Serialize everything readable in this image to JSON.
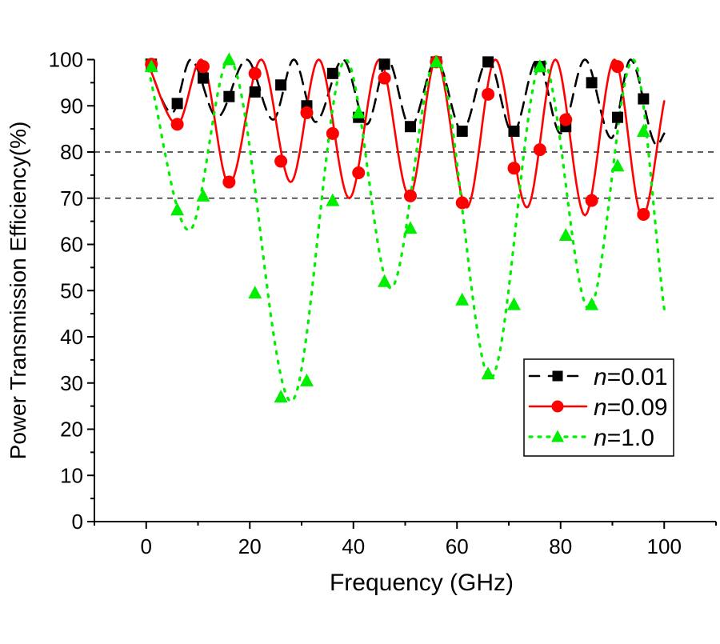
{
  "chart_data": {
    "type": "line",
    "title": "",
    "xlabel": "Frequency (GHz)",
    "ylabel": "Power Transmission Efficiency(%)",
    "xlim": [
      -10,
      110
    ],
    "ylim": [
      0,
      100
    ],
    "xticks": [
      0,
      20,
      40,
      60,
      80,
      100
    ],
    "yticks": [
      0,
      10,
      20,
      30,
      40,
      50,
      60,
      70,
      80,
      90,
      100
    ],
    "reference_lines": [
      80,
      70
    ],
    "grid": false,
    "legend_position": "bottom-right",
    "series": [
      {
        "name_prefix": "n",
        "name_suffix": "=0.01",
        "color": "#000000",
        "style": "dashed",
        "marker": "square",
        "markers": {
          "x": [
            1,
            6,
            11,
            16,
            21,
            26,
            31,
            36,
            41,
            46,
            51,
            56,
            61,
            66,
            71,
            76,
            81,
            86,
            91,
            96
          ],
          "y": [
            99,
            90.5,
            96,
            92,
            93,
            94.5,
            90,
            97,
            87.5,
            99,
            85.5,
            99.5,
            84.5,
            99.5,
            84.5,
            98.5,
            85.5,
            95,
            87.5,
            91.5
          ]
        },
        "curve": [
          [
            0,
            100
          ],
          [
            5,
            88.5
          ],
          [
            8.6,
            100
          ],
          [
            13.7,
            87.5
          ],
          [
            19.4,
            100
          ],
          [
            24.5,
            87
          ],
          [
            28.5,
            100
          ],
          [
            32.7,
            86.5
          ],
          [
            38,
            100
          ],
          [
            42.6,
            86
          ],
          [
            46.6,
            100
          ],
          [
            51,
            85.3
          ],
          [
            56,
            100
          ],
          [
            61,
            84.5
          ],
          [
            66,
            100
          ],
          [
            70.8,
            84
          ],
          [
            75.5,
            100
          ],
          [
            80,
            84
          ],
          [
            84.7,
            100
          ],
          [
            89.8,
            83
          ],
          [
            93.5,
            100
          ],
          [
            98.6,
            81.5
          ],
          [
            100,
            84
          ]
        ]
      },
      {
        "name_prefix": "n",
        "name_suffix": "=0.09",
        "color": "#ff0000",
        "style": "solid",
        "marker": "circle",
        "markers": {
          "x": [
            1,
            6,
            11,
            16,
            21,
            26,
            31,
            36,
            41,
            46,
            51,
            56,
            61,
            66,
            71,
            76,
            81,
            86,
            91,
            96
          ],
          "y": [
            99,
            86,
            98.5,
            73.5,
            97,
            78,
            88.5,
            84,
            75.5,
            96,
            70.5,
            99.5,
            69,
            92.5,
            76.5,
            80.5,
            87,
            69.5,
            98.5,
            66.5
          ]
        },
        "curve": [
          [
            0,
            100
          ],
          [
            6,
            86
          ],
          [
            10.6,
            100
          ],
          [
            16,
            73
          ],
          [
            22.2,
            100
          ],
          [
            27.9,
            73.5
          ],
          [
            33.3,
            100
          ],
          [
            39.2,
            70
          ],
          [
            45,
            100
          ],
          [
            50.8,
            70.5
          ],
          [
            56,
            100
          ],
          [
            61.9,
            68
          ],
          [
            67.4,
            100
          ],
          [
            73.5,
            68
          ],
          [
            79,
            100
          ],
          [
            84.7,
            66.3
          ],
          [
            90.4,
            100
          ],
          [
            95.8,
            66
          ],
          [
            100,
            91
          ]
        ]
      },
      {
        "name_prefix": "n",
        "name_suffix": "=1.0",
        "color": "#00ee00",
        "style": "dotted",
        "marker": "triangle",
        "markers": {
          "x": [
            1,
            6,
            11,
            16,
            21,
            26,
            31,
            36,
            41,
            46,
            51,
            56,
            61,
            66,
            71,
            76,
            81,
            86,
            91,
            96
          ],
          "y": [
            98.5,
            67.5,
            70.5,
            100,
            49.5,
            27,
            30.5,
            69.5,
            88.5,
            52,
            63.5,
            99.5,
            48,
            32,
            47,
            98.5,
            62,
            47,
            77,
            84.5
          ]
        },
        "curve": [
          [
            0,
            100
          ],
          [
            8.3,
            63
          ],
          [
            16,
            100
          ],
          [
            28,
            26
          ],
          [
            38.5,
            100
          ],
          [
            47.2,
            50.5
          ],
          [
            56,
            100
          ],
          [
            66.5,
            31
          ],
          [
            76.5,
            100
          ],
          [
            85.5,
            46
          ],
          [
            94,
            100
          ],
          [
            100,
            46
          ]
        ]
      }
    ]
  }
}
